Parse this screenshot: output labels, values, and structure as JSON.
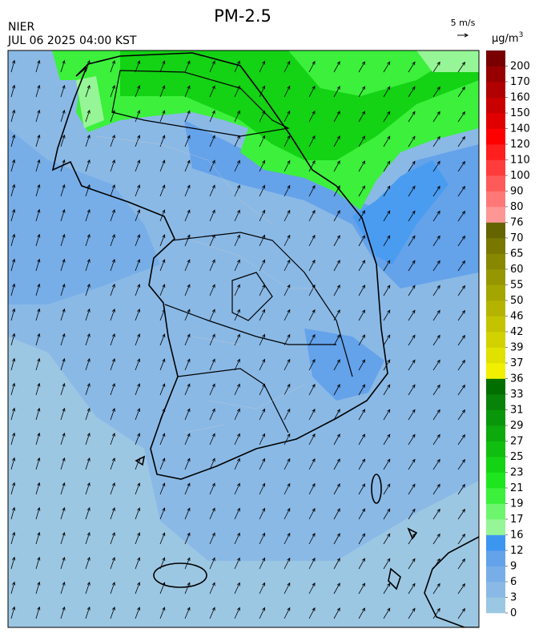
{
  "header": {
    "title": "PM-2.5",
    "agency": "NIER",
    "time": "JUL 06 2025 04:00 KST",
    "wind_scale": "5 m/s"
  },
  "legend": {
    "unit": "μg/m",
    "unit_sup": "3",
    "ticks": [
      0,
      3,
      6,
      9,
      12,
      16,
      17,
      19,
      21,
      23,
      25,
      27,
      29,
      31,
      33,
      36,
      37,
      39,
      42,
      46,
      50,
      55,
      60,
      65,
      70,
      76,
      80,
      90,
      100,
      110,
      120,
      140,
      150,
      160,
      170,
      200
    ],
    "colors": [
      "#9cc7e3",
      "#8ab9e6",
      "#78aee8",
      "#64a2ea",
      "#3c96f0",
      "#96f596",
      "#6ef56e",
      "#3cf03c",
      "#1ee61e",
      "#14d214",
      "#10be10",
      "#0caa0c",
      "#0a960a",
      "#088208",
      "#006e00",
      "#f0f000",
      "#e1e100",
      "#d2d200",
      "#c3c300",
      "#b4b400",
      "#a5a500",
      "#969600",
      "#878700",
      "#787800",
      "#646400",
      "#ff9696",
      "#ff7878",
      "#ff5a5a",
      "#ff3c3c",
      "#ff1e1e",
      "#ff0000",
      "#e00000",
      "#c80000",
      "#b00000",
      "#960000",
      "#780000"
    ]
  }
}
